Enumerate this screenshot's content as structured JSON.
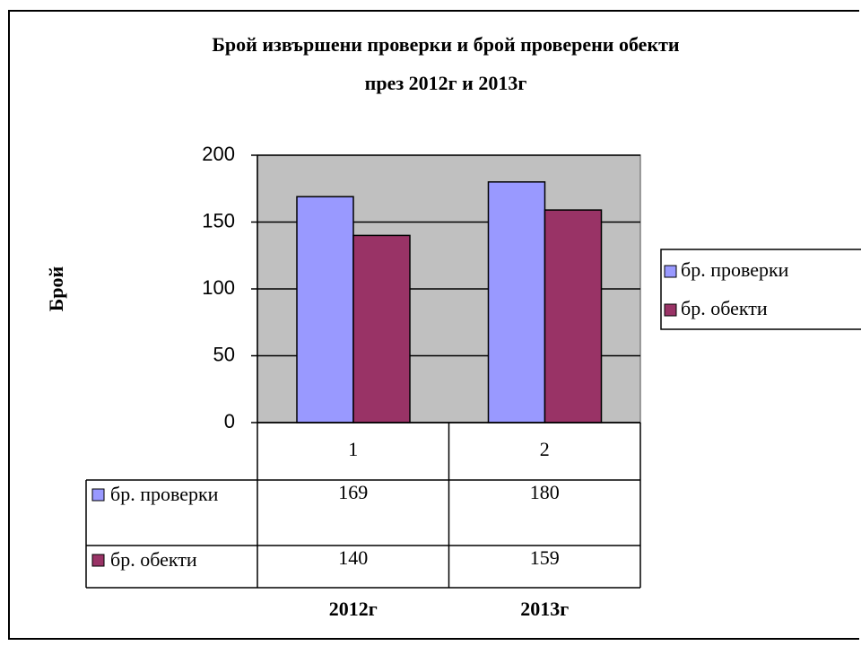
{
  "chart_data": {
    "type": "bar",
    "title": [
      "Брой извършени проверки и брой проверени обекти",
      "през 2012г и 2013г"
    ],
    "y_label": "Брой",
    "categories": [
      "1",
      "2"
    ],
    "x_labels": [
      "2012г",
      "2013г"
    ],
    "series": [
      {
        "name": "бр. проверки",
        "color": "#9999ff",
        "values": [
          169,
          180
        ]
      },
      {
        "name": "бр. обекти",
        "color": "#993366",
        "values": [
          140,
          159
        ]
      }
    ],
    "ylim": [
      0,
      200
    ],
    "yticks": [
      0,
      50,
      100,
      150,
      200
    ],
    "grid": true,
    "plot_background": "#c0c0c0",
    "legend": "right",
    "data_table": true
  }
}
